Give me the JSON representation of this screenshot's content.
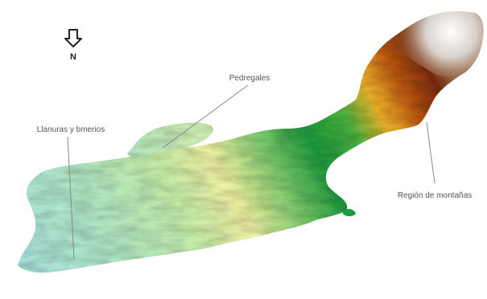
{
  "north_arrow": {
    "label": "N",
    "icon": "north-arrow-icon"
  },
  "labels": {
    "pedregales": "Pedregales",
    "llanuras": "Llanuras y bmerios",
    "montanas": "Región de montañas"
  },
  "elevation_colors": [
    "#a8e2dc",
    "#c6eeaa",
    "#f2f2a4",
    "#1c9a3c",
    "#f0b62a",
    "#7a2a08",
    "#ffffff"
  ]
}
